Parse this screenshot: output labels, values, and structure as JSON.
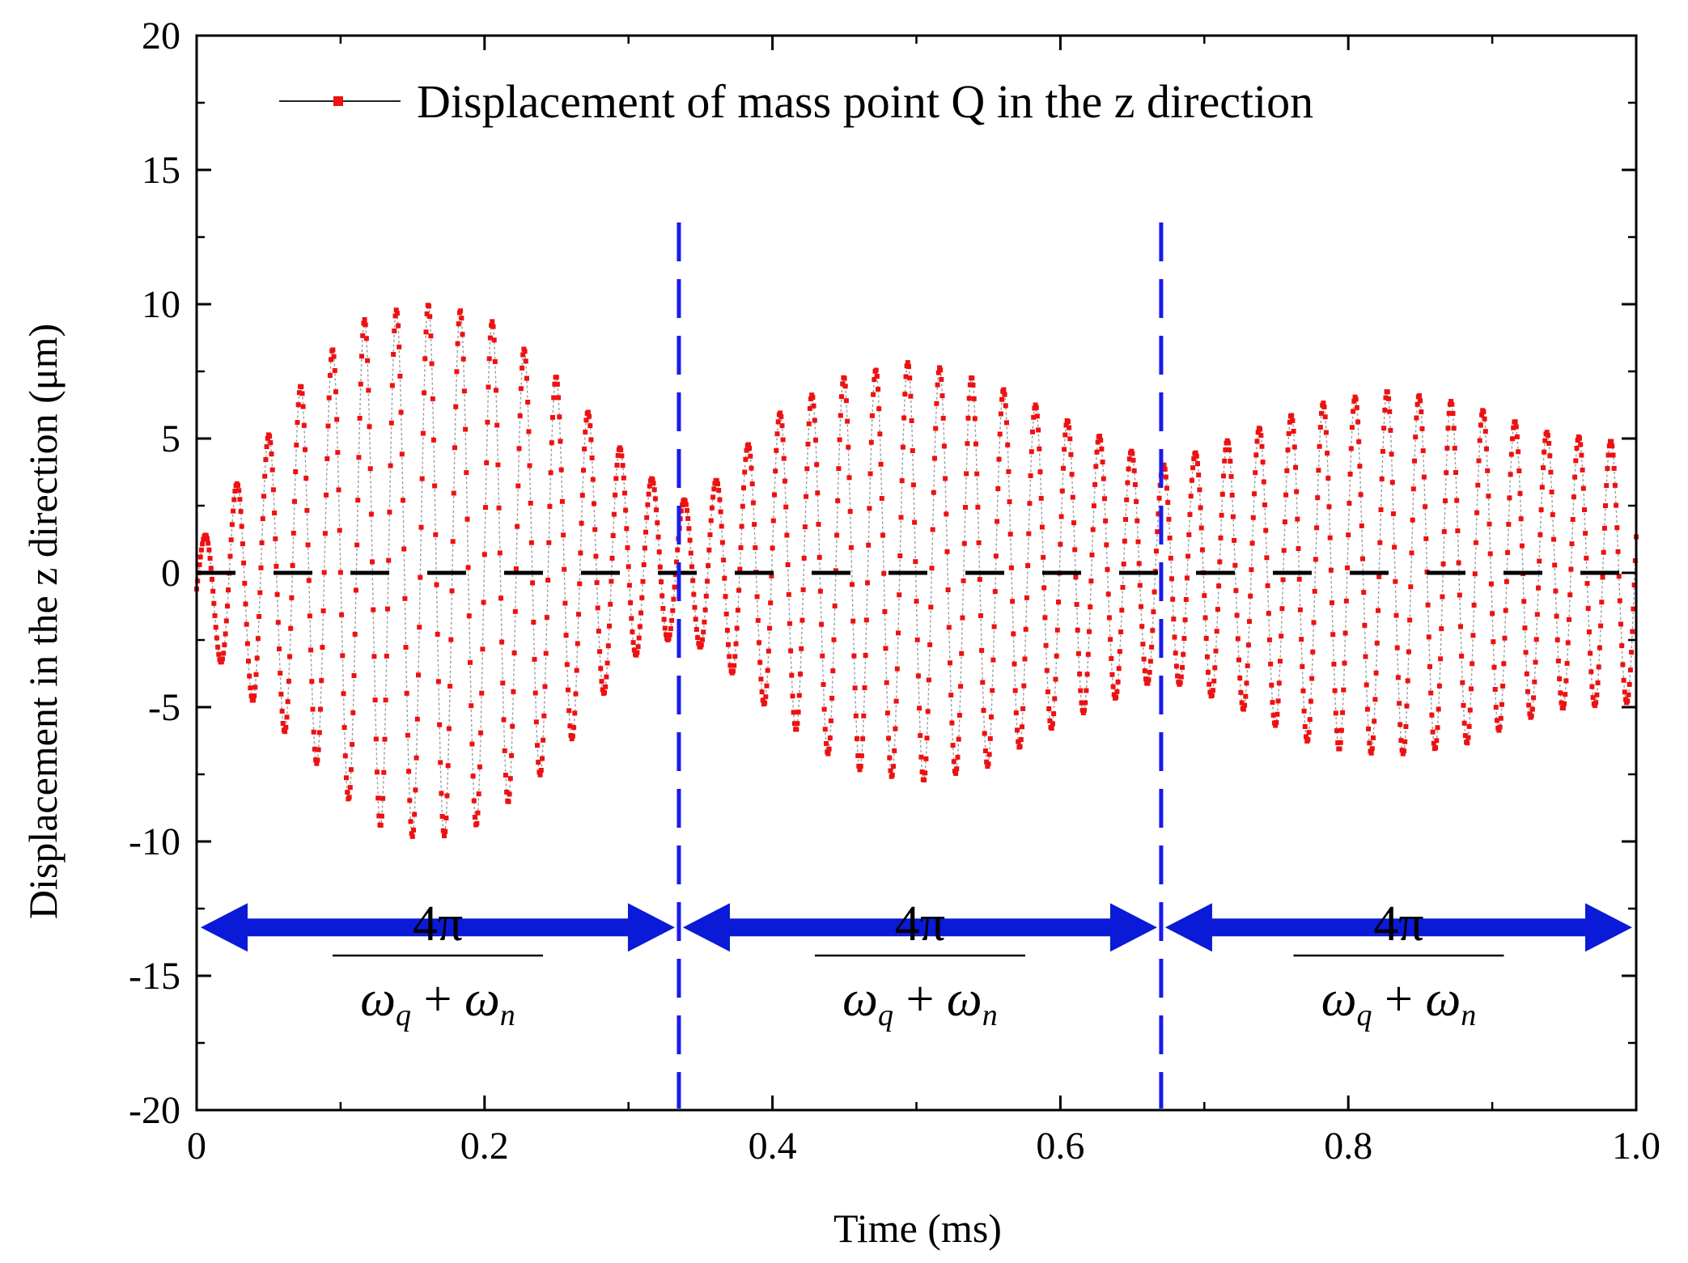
{
  "chart_data": {
    "type": "line",
    "xlabel": "Time (ms)",
    "ylabel": "Displacement in the z direction (μm)",
    "xlim": [
      0,
      1.0
    ],
    "ylim": [
      -20,
      20
    ],
    "x_ticks": [
      0,
      0.2,
      0.4,
      0.6,
      0.8,
      1.0
    ],
    "x_tick_labels": [
      "0",
      "0.2",
      "0.4",
      "0.6",
      "0.8",
      "1.0"
    ],
    "y_ticks": [
      20,
      15,
      10,
      5,
      0,
      -5,
      -10,
      -15,
      -20
    ],
    "y_tick_labels": [
      "20",
      "15",
      "10",
      "5",
      "0",
      "-5",
      "-10",
      "-15",
      "-20"
    ],
    "legend_position": "top",
    "grid": false,
    "series": [
      {
        "name": "Displacement of mass point Q in the z direction",
        "color": "#ee1111",
        "style": "dotted line with square markers",
        "carrier_period_ms": 0.0222,
        "envelope_samples": {
          "x": [
            0,
            0.03,
            0.08,
            0.12,
            0.16,
            0.2,
            0.25,
            0.3,
            0.335,
            0.36,
            0.4,
            0.45,
            0.5,
            0.55,
            0.6,
            0.67,
            0.72,
            0.78,
            0.83,
            0.88,
            0.94,
            1.0
          ],
          "upper": [
            0.9,
            3.5,
            7.6,
            9.6,
            10.0,
            9.6,
            7.3,
            4.3,
            2.6,
            3.4,
            5.8,
            7.3,
            7.9,
            7.1,
            5.8,
            4.0,
            5.0,
            6.3,
            6.8,
            6.3,
            5.2,
            4.8
          ],
          "lower": [
            -2.1,
            -4.3,
            -6.9,
            -9.3,
            -10.0,
            -9.3,
            -7.0,
            -3.2,
            -2.3,
            -3.1,
            -5.2,
            -7.2,
            -7.8,
            -7.2,
            -5.6,
            -3.9,
            -4.9,
            -6.5,
            -6.8,
            -6.4,
            -5.1,
            -4.8
          ]
        }
      }
    ],
    "annotations": {
      "zero_line": {
        "y": 0,
        "color": "#000000",
        "style": "dashed"
      },
      "period_lines": {
        "x": [
          0.335,
          0.67
        ],
        "color": "#1a1aee",
        "style": "dashed"
      },
      "period_arrows": [
        {
          "from": 0,
          "to": 0.335,
          "y": -13.2
        },
        {
          "from": 0.335,
          "to": 0.67,
          "y": -13.2
        },
        {
          "from": 0.67,
          "to": 1.0,
          "y": -13.2
        }
      ],
      "period_color": "#0a1ad6",
      "period_label": {
        "numerator": "4π",
        "denominator_terms": [
          "ω",
          "q",
          "+",
          "ω",
          "n"
        ]
      }
    }
  }
}
